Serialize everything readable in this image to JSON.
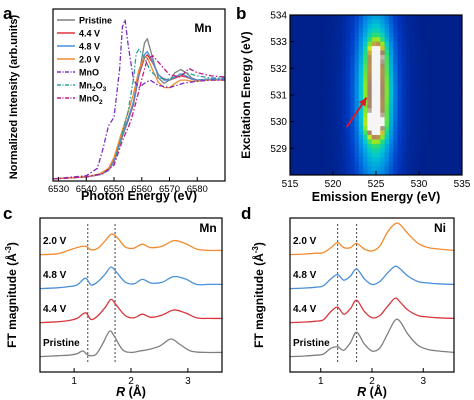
{
  "colors": {
    "pristine": "#7f7f7f",
    "v44": "#d9363e",
    "v48": "#4a90d9",
    "v20": "#f28b30",
    "mno": "#7b2fbe",
    "mn2o3": "#2aa198",
    "mno2": "#c2188b",
    "arrow": "#d81b2c"
  },
  "panel_a": {
    "letter": "a",
    "element": "Mn",
    "legend": [
      {
        "label": "Pristine",
        "color_key": "pristine",
        "dash": "solid"
      },
      {
        "label": "4.4 V",
        "color_key": "v44",
        "dash": "solid"
      },
      {
        "label": "4.8 V",
        "color_key": "v48",
        "dash": "solid"
      },
      {
        "label": "2.0 V",
        "color_key": "v20",
        "dash": "solid"
      },
      {
        "label": "MnO",
        "color_key": "mno",
        "dash": "dashdot"
      },
      {
        "label": "Mn2O3",
        "sub": "2",
        "label_main": "Mn",
        "label_tail": "O",
        "sub2": "3",
        "color_key": "mn2o3",
        "dash": "dashdot"
      },
      {
        "label": "MnO2",
        "label_main": "MnO",
        "sub": "2",
        "color_key": "mno2",
        "dash": "dashdot"
      }
    ]
  },
  "panel_b": {
    "letter": "b"
  },
  "panel_c": {
    "letter": "c",
    "element": "Mn",
    "traces": [
      "2.0 V",
      "4.8 V",
      "4.4 V",
      "Pristine"
    ]
  },
  "panel_d": {
    "letter": "d",
    "element": "Ni",
    "traces": [
      "2.0 V",
      "4.8 V",
      "4.4 V",
      "Pristine"
    ]
  },
  "chart_data": [
    {
      "type": "line",
      "panel": "a",
      "xlabel": "Photon Energy (eV)",
      "ylabel": "Normalized Intensity (arb.units)",
      "xlim": [
        6528,
        6590
      ],
      "ylim": [
        0,
        1.62
      ],
      "xticks": [
        6530,
        6540,
        6550,
        6560,
        6570,
        6580
      ],
      "series": [
        {
          "name": "Pristine",
          "color_key": "pristine",
          "dash": "solid",
          "x": [
            6528,
            6540,
            6545,
            6548,
            6550,
            6553,
            6555,
            6557,
            6559,
            6561,
            6562,
            6564,
            6566,
            6568,
            6570,
            6572,
            6574,
            6576,
            6578,
            6580,
            6584,
            6590
          ],
          "y": [
            0.02,
            0.04,
            0.06,
            0.1,
            0.18,
            0.42,
            0.56,
            0.72,
            1.0,
            1.3,
            1.34,
            1.15,
            0.97,
            0.92,
            0.95,
            1.02,
            1.05,
            1.02,
            0.97,
            0.95,
            0.96,
            0.96
          ]
        },
        {
          "name": "4.4 V",
          "color_key": "v44",
          "dash": "solid",
          "x": [
            6528,
            6540,
            6545,
            6548,
            6550,
            6553,
            6555,
            6557,
            6559,
            6561,
            6562,
            6564,
            6566,
            6568,
            6570,
            6572,
            6574,
            6576,
            6578,
            6580,
            6584,
            6590
          ],
          "y": [
            0.02,
            0.04,
            0.06,
            0.1,
            0.2,
            0.45,
            0.58,
            0.74,
            1.0,
            1.16,
            1.19,
            1.11,
            1.0,
            0.96,
            0.95,
            0.97,
            0.99,
            0.98,
            0.96,
            0.95,
            0.96,
            0.96
          ]
        },
        {
          "name": "4.8 V",
          "color_key": "v48",
          "dash": "solid",
          "x": [
            6528,
            6540,
            6545,
            6548,
            6550,
            6553,
            6555,
            6557,
            6559,
            6561,
            6562,
            6564,
            6566,
            6568,
            6570,
            6572,
            6574,
            6576,
            6578,
            6580,
            6584,
            6590
          ],
          "y": [
            0.02,
            0.04,
            0.06,
            0.1,
            0.19,
            0.44,
            0.58,
            0.75,
            1.02,
            1.19,
            1.22,
            1.12,
            1.0,
            0.95,
            0.95,
            0.98,
            1.01,
            0.99,
            0.96,
            0.95,
            0.96,
            0.96
          ]
        },
        {
          "name": "2.0 V",
          "color_key": "v20",
          "dash": "solid",
          "x": [
            6528,
            6540,
            6545,
            6548,
            6550,
            6553,
            6555,
            6557,
            6559,
            6561,
            6562,
            6564,
            6566,
            6568,
            6570,
            6572,
            6574,
            6576,
            6578,
            6580,
            6584,
            6590
          ],
          "y": [
            0.02,
            0.04,
            0.07,
            0.12,
            0.22,
            0.48,
            0.64,
            0.82,
            1.05,
            1.17,
            1.16,
            1.04,
            0.93,
            0.88,
            0.88,
            0.92,
            0.95,
            0.95,
            0.94,
            0.94,
            0.95,
            0.95
          ]
        },
        {
          "name": "MnO",
          "color_key": "mno",
          "dash": "dashdot",
          "x": [
            6528,
            6540,
            6544,
            6546,
            6548,
            6550,
            6552,
            6553,
            6554,
            6555,
            6557,
            6559,
            6561,
            6563,
            6566,
            6570,
            6575,
            6580,
            6585,
            6590
          ],
          "y": [
            0.02,
            0.05,
            0.12,
            0.3,
            0.52,
            0.6,
            1.05,
            1.45,
            1.52,
            1.3,
            0.95,
            0.88,
            0.92,
            0.95,
            0.9,
            0.88,
            0.92,
            0.94,
            0.95,
            0.95
          ]
        },
        {
          "name": "Mn2O3",
          "color_key": "mn2o3",
          "dash": "dashdot",
          "x": [
            6528,
            6540,
            6546,
            6550,
            6553,
            6555,
            6557,
            6558,
            6559,
            6561,
            6563,
            6566,
            6570,
            6574,
            6576,
            6580,
            6585,
            6590
          ],
          "y": [
            0.02,
            0.04,
            0.07,
            0.15,
            0.45,
            0.65,
            0.96,
            1.2,
            1.24,
            1.16,
            1.04,
            0.97,
            0.96,
            1.0,
            1.02,
            0.99,
            0.97,
            0.97
          ]
        },
        {
          "name": "MnO2",
          "color_key": "mno2",
          "dash": "dashdot",
          "x": [
            6528,
            6540,
            6546,
            6550,
            6553,
            6556,
            6558,
            6560,
            6562,
            6564,
            6566,
            6570,
            6574,
            6577,
            6580,
            6585,
            6590
          ],
          "y": [
            0.02,
            0.04,
            0.07,
            0.15,
            0.38,
            0.56,
            0.75,
            0.96,
            1.15,
            1.18,
            1.12,
            1.0,
            0.98,
            1.06,
            1.02,
            0.99,
            0.98
          ]
        }
      ]
    },
    {
      "type": "heatmap",
      "panel": "b",
      "xlabel": "Emission Energy (eV)",
      "ylabel": "Excitation Energy (eV)",
      "xlim": [
        515,
        535
      ],
      "ylim": [
        528,
        534
      ],
      "xticks": [
        515,
        520,
        525,
        530,
        535
      ],
      "yticks": [
        529,
        530,
        531,
        532,
        533,
        534
      ],
      "blobs": [
        {
          "cx": 524.9,
          "cy": 529.9,
          "sx": 0.9,
          "sy": 0.45,
          "amp": 1.0
        },
        {
          "cx": 525.0,
          "cy": 531.2,
          "sx": 1.2,
          "sy": 1.6,
          "amp": 0.8
        },
        {
          "cx": 525.1,
          "cy": 532.5,
          "sx": 0.8,
          "sy": 0.45,
          "amp": 0.68
        },
        {
          "cx": 524.9,
          "cy": 531.0,
          "sx": 2.6,
          "sy": 4.0,
          "amp": 0.38
        }
      ],
      "arrow": {
        "from": [
          521.6,
          529.8
        ],
        "to": [
          523.9,
          530.9
        ]
      }
    },
    {
      "type": "line",
      "panel": "c",
      "xlabel": "R (Å)",
      "ylabel": "FT magnitude (Å-3)",
      "xlim": [
        0.4,
        3.6
      ],
      "xticks": [
        1,
        2,
        3
      ],
      "dotted_lines_x": [
        1.24,
        1.72
      ],
      "series": [
        {
          "name": "2.0 V",
          "color_key": "v20",
          "offset": 3.0,
          "x": [
            0.4,
            0.7,
            0.9,
            1.05,
            1.2,
            1.3,
            1.42,
            1.55,
            1.65,
            1.75,
            1.9,
            2.05,
            2.2,
            2.35,
            2.55,
            2.75,
            2.95,
            3.15,
            3.35,
            3.6
          ],
          "y": [
            0.05,
            0.08,
            0.2,
            0.3,
            0.35,
            0.22,
            0.28,
            0.55,
            0.78,
            0.68,
            0.32,
            0.28,
            0.42,
            0.3,
            0.35,
            0.55,
            0.45,
            0.25,
            0.2,
            0.2
          ]
        },
        {
          "name": "4.8 V",
          "color_key": "v48",
          "offset": 2.0,
          "x": [
            0.4,
            0.7,
            0.9,
            1.05,
            1.2,
            1.3,
            1.42,
            1.55,
            1.65,
            1.75,
            1.9,
            2.05,
            2.2,
            2.35,
            2.55,
            2.75,
            2.95,
            3.15,
            3.35,
            3.6
          ],
          "y": [
            0.05,
            0.08,
            0.12,
            0.18,
            0.42,
            0.18,
            0.3,
            0.58,
            0.82,
            0.62,
            0.28,
            0.22,
            0.38,
            0.25,
            0.28,
            0.48,
            0.4,
            0.2,
            0.2,
            0.2
          ]
        },
        {
          "name": "4.4 V",
          "color_key": "v44",
          "offset": 1.0,
          "x": [
            0.4,
            0.7,
            0.9,
            1.05,
            1.2,
            1.3,
            1.42,
            1.55,
            1.65,
            1.75,
            1.9,
            2.05,
            2.2,
            2.35,
            2.55,
            2.75,
            2.95,
            3.15,
            3.35,
            3.6
          ],
          "y": [
            0.05,
            0.08,
            0.12,
            0.2,
            0.4,
            0.16,
            0.3,
            0.6,
            0.88,
            0.65,
            0.3,
            0.22,
            0.35,
            0.24,
            0.32,
            0.5,
            0.4,
            0.22,
            0.2,
            0.2
          ]
        },
        {
          "name": "Pristine",
          "color_key": "pristine",
          "offset": 0.0,
          "x": [
            0.4,
            0.7,
            0.9,
            1.05,
            1.15,
            1.25,
            1.38,
            1.5,
            1.62,
            1.7,
            1.85,
            2.0,
            2.15,
            2.3,
            2.5,
            2.7,
            2.85,
            3.05,
            3.3,
            3.6
          ],
          "y": [
            0.05,
            0.08,
            0.1,
            0.15,
            0.25,
            0.1,
            0.12,
            0.5,
            0.95,
            0.8,
            0.3,
            0.2,
            0.25,
            0.3,
            0.42,
            0.68,
            0.5,
            0.25,
            0.2,
            0.2
          ]
        }
      ]
    },
    {
      "type": "line",
      "panel": "d",
      "xlabel": "R (Å)",
      "ylabel": "FT magnitude (Å-3)",
      "xlim": [
        0.4,
        3.6
      ],
      "xticks": [
        1,
        2,
        3
      ],
      "dotted_lines_x": [
        1.33,
        1.7
      ],
      "series": [
        {
          "name": "2.0 V",
          "color_key": "v20",
          "offset": 3.0,
          "x": [
            0.4,
            0.7,
            0.9,
            1.05,
            1.2,
            1.33,
            1.45,
            1.58,
            1.7,
            1.85,
            2.0,
            2.15,
            2.3,
            2.45,
            2.55,
            2.7,
            2.9,
            3.1,
            3.3,
            3.6
          ],
          "y": [
            0.05,
            0.07,
            0.1,
            0.12,
            0.3,
            0.48,
            0.3,
            0.3,
            0.45,
            0.25,
            0.18,
            0.35,
            0.85,
            1.15,
            1.12,
            0.8,
            0.45,
            0.3,
            0.25,
            0.2
          ]
        },
        {
          "name": "4.8 V",
          "color_key": "v48",
          "offset": 2.0,
          "x": [
            0.4,
            0.7,
            0.9,
            1.05,
            1.2,
            1.33,
            1.45,
            1.58,
            1.7,
            1.85,
            2.0,
            2.15,
            2.3,
            2.45,
            2.55,
            2.7,
            2.9,
            3.1,
            3.3,
            3.6
          ],
          "y": [
            0.05,
            0.07,
            0.1,
            0.15,
            0.4,
            0.55,
            0.35,
            0.5,
            0.75,
            0.4,
            0.2,
            0.3,
            0.6,
            0.85,
            0.75,
            0.5,
            0.3,
            0.25,
            0.22,
            0.2
          ]
        },
        {
          "name": "4.4 V",
          "color_key": "v44",
          "offset": 1.0,
          "x": [
            0.4,
            0.7,
            0.9,
            1.05,
            1.2,
            1.33,
            1.45,
            1.58,
            1.7,
            1.85,
            2.0,
            2.15,
            2.3,
            2.45,
            2.55,
            2.7,
            2.9,
            3.1,
            3.3,
            3.6
          ],
          "y": [
            0.05,
            0.07,
            0.1,
            0.15,
            0.45,
            0.6,
            0.35,
            0.55,
            0.85,
            0.45,
            0.22,
            0.3,
            0.62,
            0.92,
            0.78,
            0.5,
            0.3,
            0.25,
            0.22,
            0.2
          ]
        },
        {
          "name": "Pristine",
          "color_key": "pristine",
          "offset": 0.0,
          "x": [
            0.4,
            0.7,
            0.9,
            1.05,
            1.2,
            1.33,
            1.45,
            1.58,
            1.7,
            1.85,
            2.0,
            2.15,
            2.3,
            2.45,
            2.55,
            2.7,
            2.9,
            3.1,
            3.3,
            3.6
          ],
          "y": [
            0.05,
            0.07,
            0.1,
            0.14,
            0.35,
            0.4,
            0.28,
            0.55,
            0.92,
            0.5,
            0.25,
            0.35,
            0.85,
            1.35,
            1.3,
            0.85,
            0.45,
            0.3,
            0.25,
            0.2
          ]
        }
      ]
    }
  ]
}
